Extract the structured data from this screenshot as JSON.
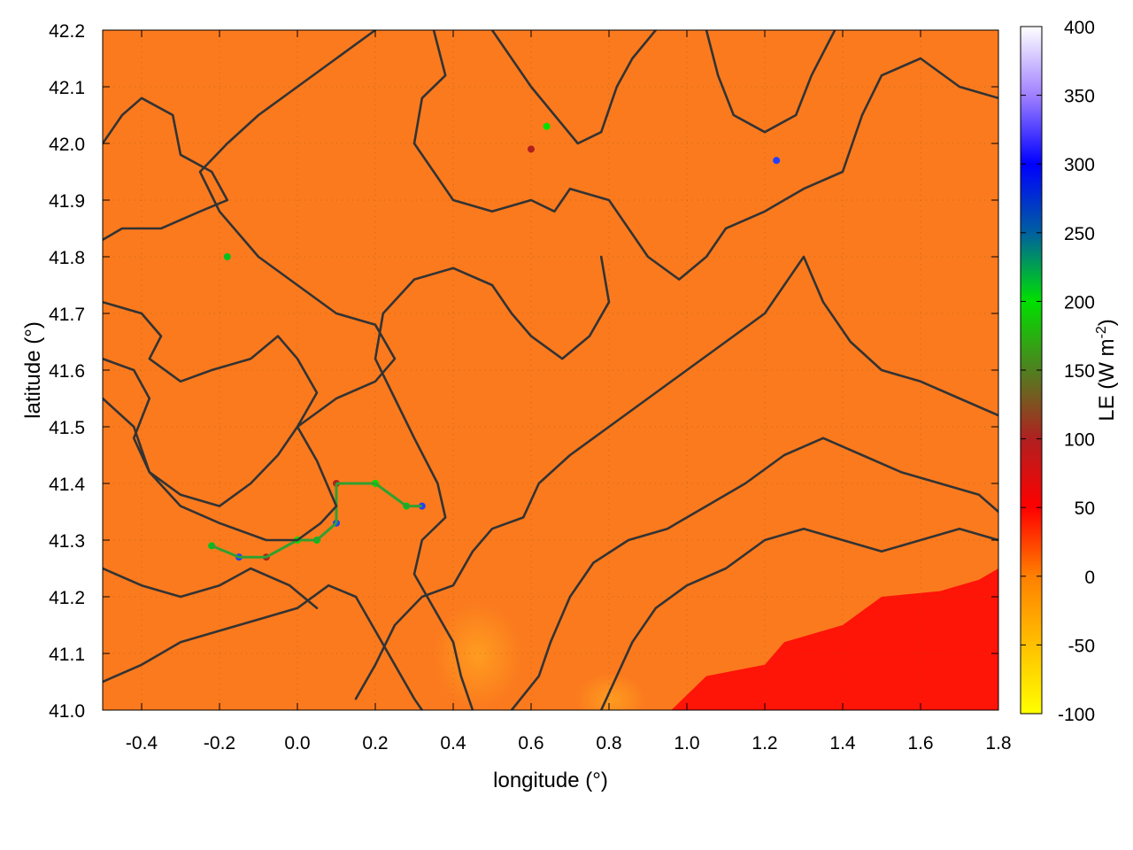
{
  "chart_data": {
    "type": "heatmap",
    "xlabel": "longitude (°)",
    "ylabel": "latitude (°)",
    "xlim": [
      -0.5,
      1.8
    ],
    "ylim": [
      41.0,
      42.2
    ],
    "xticks": [
      "-0.4",
      "-0.2",
      "0.0",
      "0.2",
      "0.4",
      "0.6",
      "0.8",
      "1.0",
      "1.2",
      "1.4",
      "1.6",
      "1.8"
    ],
    "yticks": [
      "41.0",
      "41.1",
      "41.2",
      "41.3",
      "41.4",
      "41.5",
      "41.6",
      "41.7",
      "41.8",
      "41.9",
      "42.0",
      "42.1",
      "42.2"
    ],
    "grid": true,
    "colorbar": {
      "label": "LE (W m",
      "label_superscript": "-2",
      "label_suffix": ")",
      "range": [
        -100,
        400
      ],
      "ticks": [
        "-100",
        "-50",
        "0",
        "50",
        "100",
        "150",
        "200",
        "250",
        "300",
        "350",
        "400"
      ],
      "stops": [
        {
          "value": -100,
          "color": "#ffff00"
        },
        {
          "value": -50,
          "color": "#ffc000"
        },
        {
          "value": 0,
          "color": "#ff8000"
        },
        {
          "value": 50,
          "color": "#ff0000"
        },
        {
          "value": 100,
          "color": "#b02020"
        },
        {
          "value": 150,
          "color": "#508020"
        },
        {
          "value": 200,
          "color": "#00e000"
        },
        {
          "value": 250,
          "color": "#0060a0"
        },
        {
          "value": 300,
          "color": "#0000ff"
        },
        {
          "value": 350,
          "color": "#a080ff"
        },
        {
          "value": 400,
          "color": "#ffffff"
        }
      ]
    },
    "field": {
      "background_value": 10,
      "coastal_sea_value": 70,
      "sea_boundary": [
        [
          0.96,
          41.0
        ],
        [
          1.05,
          41.06
        ],
        [
          1.2,
          41.08
        ],
        [
          1.25,
          41.12
        ],
        [
          1.4,
          41.15
        ],
        [
          1.5,
          41.2
        ],
        [
          1.65,
          41.21
        ],
        [
          1.75,
          41.23
        ],
        [
          1.8,
          41.25
        ]
      ],
      "river_points": [
        [
          -0.22,
          41.29
        ],
        [
          -0.15,
          41.27
        ],
        [
          -0.08,
          41.27
        ],
        [
          0.0,
          41.3
        ],
        [
          0.05,
          41.3
        ],
        [
          0.1,
          41.33
        ],
        [
          0.1,
          41.4
        ],
        [
          0.2,
          41.4
        ],
        [
          0.28,
          41.36
        ],
        [
          0.32,
          41.36
        ],
        [
          0.6,
          41.99
        ],
        [
          0.64,
          42.03
        ],
        [
          -0.18,
          41.8
        ],
        [
          1.23,
          41.97
        ]
      ]
    },
    "contours": [
      [
        [
          -0.5,
          42.0
        ],
        [
          -0.45,
          42.05
        ],
        [
          -0.4,
          42.08
        ],
        [
          -0.32,
          42.05
        ],
        [
          -0.3,
          41.98
        ],
        [
          -0.22,
          41.95
        ],
        [
          -0.18,
          41.9
        ],
        [
          -0.25,
          41.88
        ],
        [
          -0.35,
          41.85
        ],
        [
          -0.45,
          41.85
        ],
        [
          -0.5,
          41.83
        ]
      ],
      [
        [
          -0.5,
          41.72
        ],
        [
          -0.4,
          41.7
        ],
        [
          -0.35,
          41.66
        ],
        [
          -0.38,
          41.62
        ],
        [
          -0.3,
          41.58
        ],
        [
          -0.22,
          41.6
        ],
        [
          -0.12,
          41.62
        ],
        [
          -0.05,
          41.66
        ],
        [
          0.0,
          41.62
        ],
        [
          0.05,
          41.56
        ],
        [
          0.0,
          41.5
        ],
        [
          -0.05,
          41.45
        ],
        [
          -0.12,
          41.4
        ],
        [
          -0.2,
          41.36
        ],
        [
          -0.3,
          41.38
        ],
        [
          -0.38,
          41.42
        ],
        [
          -0.42,
          41.48
        ],
        [
          -0.38,
          41.55
        ],
        [
          -0.42,
          41.6
        ],
        [
          -0.5,
          41.62
        ]
      ],
      [
        [
          -0.5,
          41.55
        ],
        [
          -0.42,
          41.5
        ],
        [
          -0.38,
          41.42
        ],
        [
          -0.3,
          41.36
        ],
        [
          -0.2,
          41.33
        ],
        [
          -0.08,
          41.3
        ],
        [
          0.0,
          41.3
        ],
        [
          0.06,
          41.33
        ],
        [
          0.1,
          41.36
        ],
        [
          0.05,
          41.44
        ],
        [
          0.0,
          41.5
        ],
        [
          0.1,
          41.55
        ],
        [
          0.2,
          41.58
        ],
        [
          0.25,
          41.62
        ],
        [
          0.2,
          41.68
        ],
        [
          0.1,
          41.7
        ],
        [
          0.0,
          41.75
        ],
        [
          -0.1,
          41.8
        ],
        [
          -0.2,
          41.88
        ],
        [
          -0.25,
          41.95
        ],
        [
          -0.18,
          42.0
        ],
        [
          -0.1,
          42.05
        ],
        [
          0.0,
          42.1
        ],
        [
          0.1,
          42.15
        ],
        [
          0.2,
          42.2
        ]
      ],
      [
        [
          0.35,
          42.2
        ],
        [
          0.38,
          42.12
        ],
        [
          0.32,
          42.08
        ],
        [
          0.3,
          42.0
        ],
        [
          0.35,
          41.95
        ],
        [
          0.4,
          41.9
        ],
        [
          0.5,
          41.88
        ],
        [
          0.6,
          41.9
        ],
        [
          0.66,
          41.88
        ],
        [
          0.7,
          41.92
        ],
        [
          0.8,
          41.9
        ],
        [
          0.85,
          41.85
        ],
        [
          0.9,
          41.8
        ],
        [
          0.98,
          41.76
        ],
        [
          1.05,
          41.8
        ],
        [
          1.1,
          41.85
        ],
        [
          1.2,
          41.88
        ],
        [
          1.3,
          41.92
        ],
        [
          1.4,
          41.95
        ],
        [
          1.45,
          42.05
        ],
        [
          1.5,
          42.12
        ],
        [
          1.6,
          42.15
        ],
        [
          1.7,
          42.1
        ],
        [
          1.8,
          42.08
        ]
      ],
      [
        [
          0.5,
          42.2
        ],
        [
          0.55,
          42.15
        ],
        [
          0.6,
          42.1
        ],
        [
          0.66,
          42.05
        ],
        [
          0.72,
          42.0
        ],
        [
          0.78,
          42.02
        ],
        [
          0.82,
          42.1
        ],
        [
          0.86,
          42.15
        ],
        [
          0.92,
          42.2
        ]
      ],
      [
        [
          1.05,
          42.2
        ],
        [
          1.08,
          42.12
        ],
        [
          1.12,
          42.05
        ],
        [
          1.2,
          42.02
        ],
        [
          1.28,
          42.05
        ],
        [
          1.32,
          42.12
        ],
        [
          1.38,
          42.2
        ]
      ],
      [
        [
          0.15,
          41.02
        ],
        [
          0.2,
          41.08
        ],
        [
          0.25,
          41.15
        ],
        [
          0.32,
          41.2
        ],
        [
          0.4,
          41.22
        ],
        [
          0.45,
          41.28
        ],
        [
          0.5,
          41.32
        ],
        [
          0.58,
          41.34
        ],
        [
          0.62,
          41.4
        ],
        [
          0.7,
          41.45
        ],
        [
          0.8,
          41.5
        ],
        [
          0.9,
          41.55
        ],
        [
          1.0,
          41.6
        ],
        [
          1.1,
          41.65
        ],
        [
          1.2,
          41.7
        ],
        [
          1.25,
          41.75
        ],
        [
          1.3,
          41.8
        ],
        [
          1.35,
          41.72
        ],
        [
          1.42,
          41.65
        ],
        [
          1.5,
          41.6
        ],
        [
          1.6,
          41.58
        ],
        [
          1.7,
          41.55
        ],
        [
          1.8,
          41.52
        ]
      ],
      [
        [
          0.55,
          41.0
        ],
        [
          0.62,
          41.06
        ],
        [
          0.65,
          41.12
        ],
        [
          0.7,
          41.2
        ],
        [
          0.76,
          41.26
        ],
        [
          0.85,
          41.3
        ],
        [
          0.95,
          41.32
        ],
        [
          1.05,
          41.36
        ],
        [
          1.15,
          41.4
        ],
        [
          1.25,
          41.45
        ],
        [
          1.35,
          41.48
        ],
        [
          1.45,
          41.45
        ],
        [
          1.55,
          41.42
        ],
        [
          1.65,
          41.4
        ],
        [
          1.75,
          41.38
        ],
        [
          1.8,
          41.35
        ]
      ],
      [
        [
          0.78,
          41.0
        ],
        [
          0.82,
          41.06
        ],
        [
          0.86,
          41.12
        ],
        [
          0.92,
          41.18
        ],
        [
          1.0,
          41.22
        ],
        [
          1.1,
          41.25
        ],
        [
          1.2,
          41.3
        ],
        [
          1.3,
          41.32
        ],
        [
          1.4,
          41.3
        ],
        [
          1.5,
          41.28
        ],
        [
          1.6,
          41.3
        ],
        [
          1.7,
          41.32
        ],
        [
          1.8,
          41.3
        ]
      ],
      [
        [
          -0.5,
          41.05
        ],
        [
          -0.4,
          41.08
        ],
        [
          -0.3,
          41.12
        ],
        [
          -0.2,
          41.14
        ],
        [
          -0.1,
          41.16
        ],
        [
          0.0,
          41.18
        ],
        [
          0.08,
          41.22
        ],
        [
          0.15,
          41.2
        ],
        [
          0.2,
          41.14
        ],
        [
          0.25,
          41.08
        ],
        [
          0.3,
          41.02
        ],
        [
          0.32,
          41.0
        ]
      ],
      [
        [
          -0.5,
          41.25
        ],
        [
          -0.4,
          41.22
        ],
        [
          -0.3,
          41.2
        ],
        [
          -0.2,
          41.22
        ],
        [
          -0.12,
          41.25
        ],
        [
          -0.02,
          41.22
        ],
        [
          0.05,
          41.18
        ]
      ],
      [
        [
          0.45,
          41.0
        ],
        [
          0.42,
          41.06
        ],
        [
          0.4,
          41.12
        ],
        [
          0.35,
          41.18
        ],
        [
          0.3,
          41.24
        ],
        [
          0.32,
          41.3
        ],
        [
          0.38,
          41.34
        ],
        [
          0.36,
          41.4
        ],
        [
          0.3,
          41.48
        ],
        [
          0.25,
          41.55
        ],
        [
          0.2,
          41.62
        ],
        [
          0.22,
          41.7
        ],
        [
          0.3,
          41.76
        ],
        [
          0.4,
          41.78
        ],
        [
          0.5,
          41.75
        ],
        [
          0.55,
          41.7
        ],
        [
          0.6,
          41.66
        ],
        [
          0.68,
          41.62
        ],
        [
          0.75,
          41.66
        ],
        [
          0.8,
          41.72
        ],
        [
          0.78,
          41.8
        ]
      ]
    ]
  }
}
